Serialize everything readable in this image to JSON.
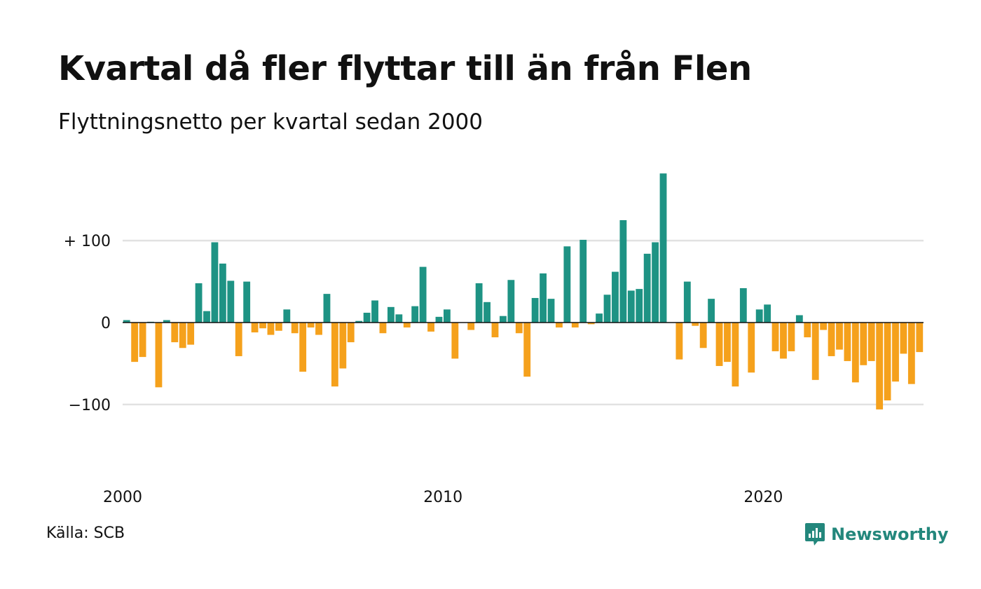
{
  "colors": {
    "positive": "#1e9384",
    "negative": "#f5a11c",
    "grid": "#e2e2e2",
    "axis": "#111111",
    "brand": "#23877c"
  },
  "source_label": "Källa: SCB",
  "brand": {
    "name": "Newsworthy",
    "icon": "newsworthy-logo-icon"
  },
  "chart_data": {
    "type": "bar",
    "title": "Kvartal då fler flyttar till än från Flen",
    "subtitle": "Flyttningsnetto per kvartal sedan 2000",
    "xlabel": "",
    "ylabel": "",
    "ylim": [
      -160,
      190
    ],
    "y_ticks": [
      {
        "value": 100,
        "label": "+ 100"
      },
      {
        "value": 0,
        "label": "0"
      },
      {
        "value": -100,
        "label": "−100"
      }
    ],
    "x_ticks": [
      {
        "index": 0,
        "label": "2000"
      },
      {
        "index": 40,
        "label": "2010"
      },
      {
        "index": 80,
        "label": "2020"
      }
    ],
    "grid": true,
    "legend": "none",
    "start_period": "2000 Q1",
    "values": [
      3,
      -48,
      -42,
      1,
      -79,
      3,
      -24,
      -31,
      -27,
      48,
      14,
      98,
      72,
      51,
      -41,
      50,
      -12,
      -7,
      -15,
      -10,
      16,
      -13,
      -60,
      -6,
      -15,
      35,
      -78,
      -56,
      -24,
      2,
      12,
      27,
      -13,
      19,
      10,
      -6,
      20,
      68,
      -11,
      7,
      16,
      -44,
      0,
      -9,
      48,
      25,
      -18,
      8,
      52,
      -13,
      -66,
      30,
      60,
      29,
      -6,
      93,
      -6,
      101,
      -2,
      11,
      34,
      62,
      125,
      39,
      41,
      84,
      98,
      182,
      0,
      -45,
      50,
      -4,
      -31,
      29,
      -53,
      -48,
      -78,
      42,
      -61,
      16,
      22,
      -35,
      -44,
      -35,
      9,
      -18,
      -70,
      -9,
      -41,
      -33,
      -47,
      -73,
      -52,
      -47,
      -106,
      -95,
      -72,
      -38,
      -75,
      -36
    ]
  }
}
